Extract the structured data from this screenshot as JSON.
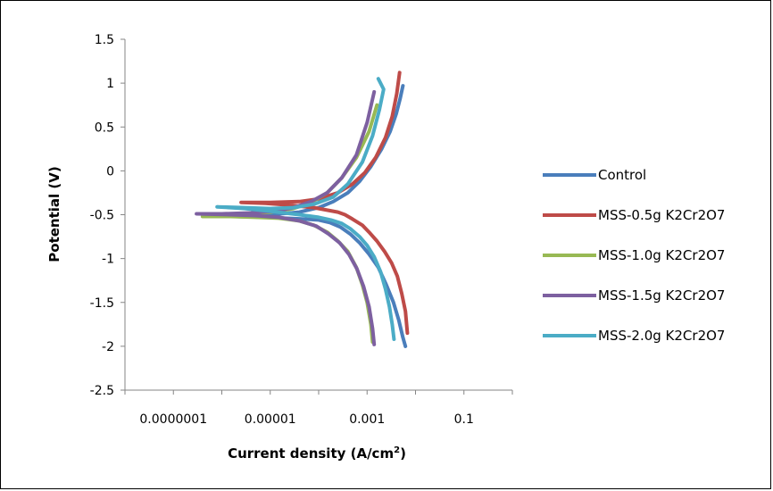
{
  "chart_data": {
    "type": "line",
    "title": "",
    "xlabel": "Current density (A/cm",
    "xlabel_sup": "2",
    "xlabel_end": ")",
    "ylabel": "Potential (V)",
    "x_scale": "log",
    "xlim": [
      1e-08,
      1
    ],
    "ylim": [
      -2.5,
      1.5
    ],
    "y_ticks": [
      1.5,
      1,
      0.5,
      0,
      -0.5,
      -1,
      -1.5,
      -2,
      -2.5
    ],
    "y_tick_labels": [
      "1.5",
      "1",
      "0.5",
      "0",
      "-0.5",
      "-1",
      "-1.5",
      "-2",
      "-2.5"
    ],
    "x_ticks": [
      1e-07,
      1e-05,
      0.001,
      0.1
    ],
    "x_tick_labels": [
      "0.0000001",
      "0.00001",
      "0.001",
      "0.1"
    ],
    "grid": false,
    "legend_position": "right",
    "series": [
      {
        "name": "Control",
        "color": "#4a7ebb",
        "x": [
          0.0062,
          0.0055,
          0.0045,
          0.0035,
          0.0025,
          0.0017,
          0.0011,
          0.0007,
          0.00045,
          0.00028,
          0.00017,
          0.0001,
          5e-05,
          2e-05,
          8e-06,
          2e-06,
          1e-05,
          4e-05,
          0.0001,
          0.0002,
          0.0004,
          0.0007,
          0.0012,
          0.002,
          0.003,
          0.004,
          0.0048,
          0.0055
        ],
        "y": [
          -2.0,
          -1.9,
          -1.7,
          -1.5,
          -1.3,
          -1.1,
          -0.95,
          -0.82,
          -0.72,
          -0.64,
          -0.59,
          -0.56,
          -0.55,
          -0.54,
          -0.53,
          -0.52,
          -0.5,
          -0.47,
          -0.42,
          -0.35,
          -0.25,
          -0.12,
          0.05,
          0.25,
          0.45,
          0.65,
          0.82,
          0.97
        ]
      },
      {
        "name": "MSS-0.5g K2Cr2O7",
        "color": "#be4b48",
        "x": [
          0.0068,
          0.0062,
          0.0052,
          0.0042,
          0.0032,
          0.0023,
          0.0016,
          0.0011,
          0.0008,
          0.0005,
          0.00035,
          0.00025,
          8e-05,
          2.5e-05,
          8e-06,
          2.5e-06,
          1e-05,
          4e-05,
          0.0001,
          0.00025,
          0.0005,
          0.0009,
          0.0015,
          0.0024,
          0.0033,
          0.0041,
          0.0047
        ],
        "y": [
          -1.85,
          -1.6,
          -1.4,
          -1.2,
          -1.05,
          -0.92,
          -0.8,
          -0.7,
          -0.62,
          -0.55,
          -0.5,
          -0.47,
          -0.42,
          -0.39,
          -0.37,
          -0.36,
          -0.36,
          -0.35,
          -0.32,
          -0.25,
          -0.15,
          -0.02,
          0.15,
          0.38,
          0.62,
          0.88,
          1.12
        ]
      },
      {
        "name": "MSS-1.0g K2Cr2O7",
        "color": "#98b954",
        "x": [
          0.0013,
          0.0012,
          0.001,
          0.0008,
          0.0006,
          0.0004,
          0.00025,
          0.00015,
          8e-05,
          4e-05,
          1.5e-05,
          5e-06,
          1.5e-06,
          4e-07,
          1e-06,
          4e-06,
          1e-05,
          3e-05,
          7e-05,
          0.00015,
          0.0003,
          0.0006,
          0.0011,
          0.0016
        ],
        "y": [
          -1.95,
          -1.75,
          -1.5,
          -1.3,
          -1.1,
          -0.92,
          -0.8,
          -0.7,
          -0.62,
          -0.57,
          -0.54,
          -0.53,
          -0.52,
          -0.52,
          -0.5,
          -0.49,
          -0.47,
          -0.43,
          -0.36,
          -0.25,
          -0.08,
          0.15,
          0.45,
          0.75
        ]
      },
      {
        "name": "MSS-1.5g K2Cr2O7",
        "color": "#7d60a0",
        "x": [
          0.0014,
          0.0013,
          0.0011,
          0.00085,
          0.00062,
          0.00042,
          0.00027,
          0.00016,
          9e-05,
          4e-05,
          1.5e-05,
          5e-06,
          1.5e-06,
          3e-07,
          1e-06,
          4e-06,
          1.2e-05,
          3e-05,
          7e-05,
          0.00015,
          0.0003,
          0.0006,
          0.001,
          0.0014
        ],
        "y": [
          -1.98,
          -1.8,
          -1.55,
          -1.32,
          -1.12,
          -0.95,
          -0.82,
          -0.72,
          -0.63,
          -0.57,
          -0.53,
          -0.51,
          -0.5,
          -0.49,
          -0.49,
          -0.48,
          -0.46,
          -0.42,
          -0.35,
          -0.25,
          -0.08,
          0.18,
          0.55,
          0.9
        ]
      },
      {
        "name": "MSS-2.0g K2Cr2O7",
        "color": "#4bacc6",
        "x": [
          0.0036,
          0.0033,
          0.0029,
          0.0024,
          0.0019,
          0.0014,
          0.001,
          0.0007,
          0.00045,
          0.0003,
          0.00018,
          0.0001,
          4e-05,
          1e-05,
          3e-06,
          8e-07,
          3e-06,
          1e-05,
          3e-05,
          8e-05,
          0.0002,
          0.0004,
          0.0008,
          0.0013,
          0.0018,
          0.0022,
          0.0017
        ],
        "y": [
          -1.92,
          -1.75,
          -1.55,
          -1.35,
          -1.15,
          -0.98,
          -0.85,
          -0.75,
          -0.66,
          -0.6,
          -0.56,
          -0.53,
          -0.5,
          -0.46,
          -0.43,
          -0.41,
          -0.42,
          -0.43,
          -0.42,
          -0.38,
          -0.3,
          -0.15,
          0.1,
          0.4,
          0.7,
          0.93,
          1.05
        ]
      }
    ]
  }
}
